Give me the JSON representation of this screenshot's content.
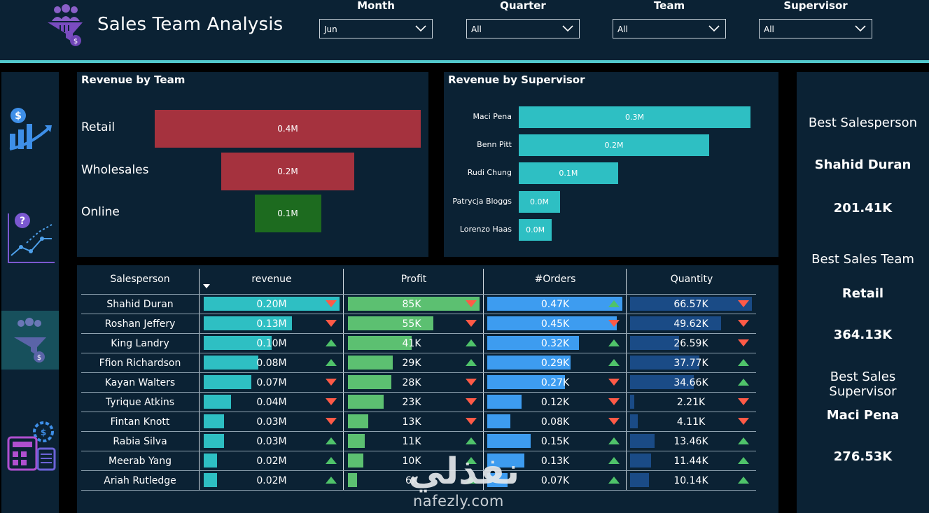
{
  "header": {
    "title": "Sales Team Analysis",
    "filters": [
      {
        "label": "Month",
        "value": "Jun"
      },
      {
        "label": "Quarter",
        "value": "All"
      },
      {
        "label": "Team",
        "value": "All"
      },
      {
        "label": "Supervisor",
        "value": "All"
      }
    ]
  },
  "nav": {
    "items": [
      "revenue-icon",
      "analytics-icon",
      "sales-team-icon",
      "calculator-icon"
    ],
    "active": "sales-team-icon"
  },
  "colors": {
    "background": "#0b2234",
    "accent_line": "#52c8cc",
    "team_retail": "#a5323e",
    "team_wholesales": "#a5323e",
    "team_online": "#1d6b1f",
    "supervisor_bar": "#2ebfc3",
    "revenue_bar": "#2ebfc3",
    "profit_bar": "#5cc071",
    "orders_bar": "#3d9cf0",
    "quantity_bar": "#1a4b86",
    "down": "#ff5a47",
    "up": "#4fc36a"
  },
  "revenue_by_team": {
    "title": "Revenue by Team",
    "chart_data": {
      "type": "bar",
      "categories": [
        "Retail",
        "Wholesales",
        "Online"
      ],
      "values": [
        0.4,
        0.2,
        0.1
      ],
      "value_labels": [
        "0.4M",
        "0.2M",
        "0.1M"
      ]
    }
  },
  "revenue_by_supervisor": {
    "title": "Revenue by Supervisor",
    "chart_data": {
      "type": "bar",
      "categories": [
        "Maci Pena",
        "Benn Pitt",
        "Rudi Chung",
        "Patrycja Bloggs",
        "Lorenzo Haas"
      ],
      "values": [
        0.28,
        0.23,
        0.12,
        0.05,
        0.04
      ],
      "value_labels": [
        "0.3M",
        "0.2M",
        "0.1M",
        "0.0M",
        "0.0M"
      ]
    }
  },
  "kpis": [
    {
      "title": "Best Salesperson",
      "name": "Shahid Duran",
      "value": "201.41K"
    },
    {
      "title": "Best Sales Team",
      "name": "Retail",
      "value": "364.13K"
    },
    {
      "title": "Best Sales Supervisor",
      "name": "Maci Pena",
      "value": "276.53K"
    }
  ],
  "table": {
    "columns": [
      "Salesperson",
      "revenue",
      "Profit",
      "#Orders",
      "Quantity"
    ],
    "rows": [
      {
        "name": "Shahid Duran",
        "revenue": "0.20M",
        "rev": 0.2,
        "rev_trend": "down",
        "profit": "85K",
        "prf": 85,
        "profit_trend": "down",
        "orders": "0.47K",
        "ord": 0.47,
        "orders_trend": "up",
        "quantity": "66.57K",
        "qty": 66.57,
        "quantity_trend": "down"
      },
      {
        "name": "Roshan Jeffery",
        "revenue": "0.13M",
        "rev": 0.13,
        "rev_trend": "down",
        "profit": "55K",
        "prf": 55,
        "profit_trend": "down",
        "orders": "0.45K",
        "ord": 0.45,
        "orders_trend": "down",
        "quantity": "49.62K",
        "qty": 49.62,
        "quantity_trend": "down"
      },
      {
        "name": "King Landry",
        "revenue": "0.10M",
        "rev": 0.1,
        "rev_trend": "up",
        "profit": "41K",
        "prf": 41,
        "profit_trend": "up",
        "orders": "0.32K",
        "ord": 0.32,
        "orders_trend": "up",
        "quantity": "26.59K",
        "qty": 26.59,
        "quantity_trend": "down"
      },
      {
        "name": "Ffion Richardson",
        "revenue": "0.08M",
        "rev": 0.08,
        "rev_trend": "up",
        "profit": "29K",
        "prf": 29,
        "profit_trend": "up",
        "orders": "0.29K",
        "ord": 0.29,
        "orders_trend": "up",
        "quantity": "37.77K",
        "qty": 37.77,
        "quantity_trend": "up"
      },
      {
        "name": "Kayan Walters",
        "revenue": "0.07M",
        "rev": 0.07,
        "rev_trend": "down",
        "profit": "28K",
        "prf": 28,
        "profit_trend": "down",
        "orders": "0.27K",
        "ord": 0.27,
        "orders_trend": "down",
        "quantity": "34.66K",
        "qty": 34.66,
        "quantity_trend": "up"
      },
      {
        "name": "Tyrique Atkins",
        "revenue": "0.04M",
        "rev": 0.04,
        "rev_trend": "down",
        "profit": "23K",
        "prf": 23,
        "profit_trend": "down",
        "orders": "0.12K",
        "ord": 0.12,
        "orders_trend": "down",
        "quantity": "2.21K",
        "qty": 2.21,
        "quantity_trend": "down"
      },
      {
        "name": "Fintan Knott",
        "revenue": "0.03M",
        "rev": 0.03,
        "rev_trend": "down",
        "profit": "13K",
        "prf": 13,
        "profit_trend": "down",
        "orders": "0.08K",
        "ord": 0.08,
        "orders_trend": "down",
        "quantity": "4.11K",
        "qty": 4.11,
        "quantity_trend": "down"
      },
      {
        "name": "Rabia Silva",
        "revenue": "0.03M",
        "rev": 0.03,
        "rev_trend": "up",
        "profit": "11K",
        "prf": 11,
        "profit_trend": "up",
        "orders": "0.15K",
        "ord": 0.15,
        "orders_trend": "up",
        "quantity": "13.46K",
        "qty": 13.46,
        "quantity_trend": "up"
      },
      {
        "name": "Meerab Yang",
        "revenue": "0.02M",
        "rev": 0.02,
        "rev_trend": "up",
        "profit": "10K",
        "prf": 10,
        "profit_trend": "up",
        "orders": "0.13K",
        "ord": 0.13,
        "orders_trend": "up",
        "quantity": "11.44K",
        "qty": 11.44,
        "quantity_trend": "up"
      },
      {
        "name": "Ariah Rutledge",
        "revenue": "0.02M",
        "rev": 0.02,
        "rev_trend": "up",
        "profit": "6K",
        "prf": 6,
        "profit_trend": "up",
        "orders": "0.07K",
        "ord": 0.07,
        "orders_trend": "up",
        "quantity": "10.14K",
        "qty": 10.14,
        "quantity_trend": "up"
      }
    ]
  },
  "watermark": {
    "arabic": "نفذلي",
    "latin": "nafezly.com"
  }
}
